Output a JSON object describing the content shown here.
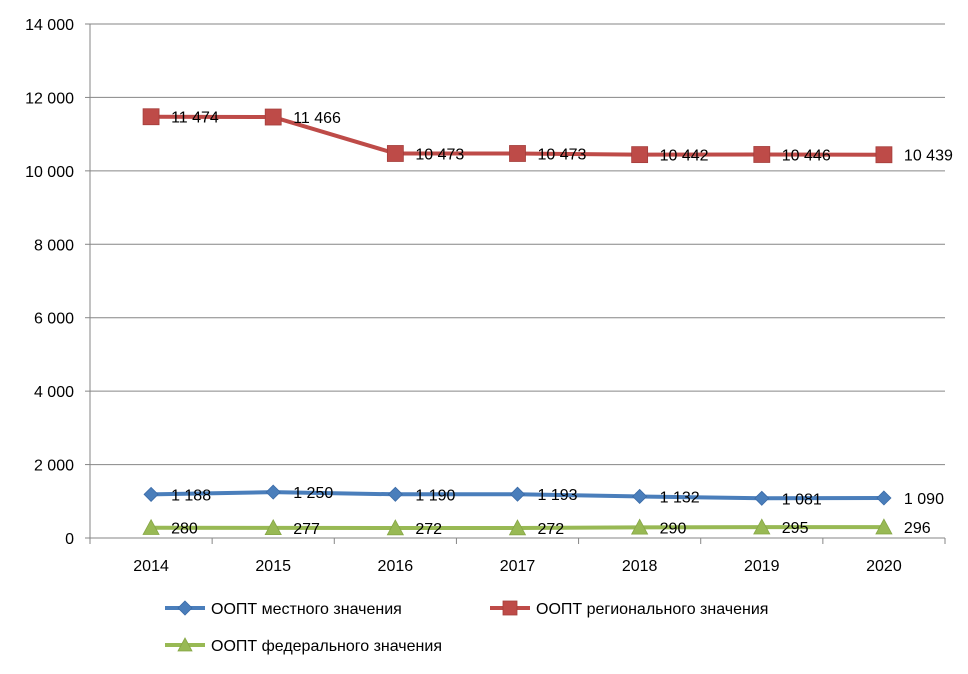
{
  "chart_data": {
    "type": "line",
    "title": "",
    "xlabel": "",
    "ylabel": "",
    "ylim": [
      0,
      14000
    ],
    "ytick_step": 2000,
    "ytick_labels": [
      "0",
      "2 000",
      "4 000",
      "6 000",
      "8 000",
      "10 000",
      "12 000",
      "14 000"
    ],
    "grid": true,
    "legend_position": "bottom",
    "categories": [
      "2014",
      "2015",
      "2016",
      "2017",
      "2018",
      "2019",
      "2020"
    ],
    "series": [
      {
        "name": "ООПТ местного значения",
        "marker": "diamond",
        "color": "#4a7ebb",
        "values": [
          1188,
          1250,
          1190,
          1193,
          1132,
          1081,
          1090
        ],
        "labels": [
          "1 188",
          "1 250",
          "1 190",
          "1 193",
          "1 132",
          "1 081",
          "1 090"
        ]
      },
      {
        "name": "ООПТ регионального значения",
        "marker": "square",
        "color": "#be4b48",
        "values": [
          11474,
          11466,
          10473,
          10473,
          10442,
          10446,
          10439
        ],
        "labels": [
          "11 474",
          "11 466",
          "10 473",
          "10 473",
          "10 442",
          "10 446",
          "10 439"
        ]
      },
      {
        "name": "ООПТ федерального значения",
        "marker": "triangle",
        "color": "#98b954",
        "values": [
          280,
          277,
          272,
          272,
          290,
          295,
          296
        ],
        "labels": [
          "280",
          "277",
          "272",
          "272",
          "290",
          "295",
          "296"
        ]
      }
    ]
  }
}
